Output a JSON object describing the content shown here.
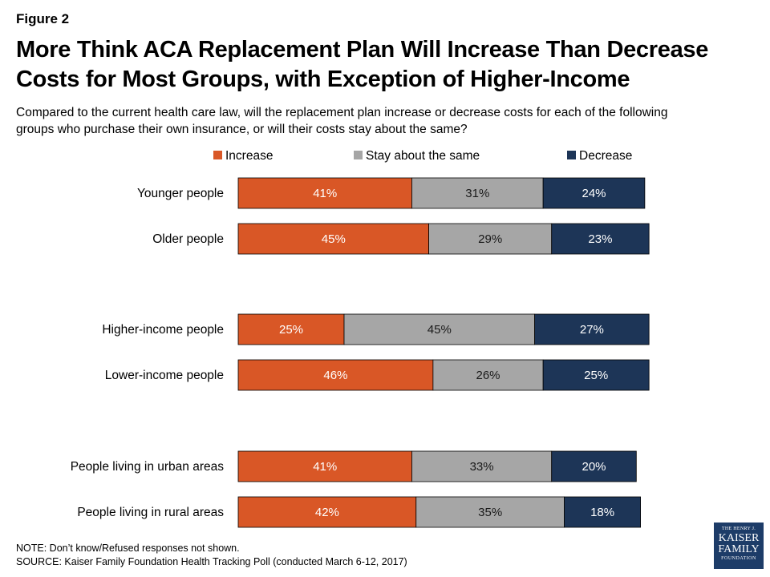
{
  "figure_label": "Figure 2",
  "title_line1": "More Think ACA Replacement Plan Will Increase Than Decrease",
  "title_line2": "Costs for Most Groups, with Exception of Higher-Income",
  "subtitle_line1": "Compared to the current health care law, will the replacement plan increase or decrease costs for each of the following",
  "subtitle_line2": "groups who purchase their own insurance, or will their costs stay about the same?",
  "note": "NOTE: Don’t know/Refused responses not shown.",
  "source": "SOURCE: Kaiser Family Foundation Health Tracking Poll (conducted March 6-12, 2017)",
  "logo": {
    "line1": "THE HENRY J.",
    "line2": "KAISER",
    "line3": "FAMILY",
    "line4": "FOUNDATION"
  },
  "colors": {
    "increase": "#d95726",
    "same": "#a6a6a6",
    "decrease": "#1d3557",
    "bar_text_light": "#ffffff",
    "bar_text_dark": "#1a1a1a"
  },
  "chart_data": {
    "type": "bar",
    "orientation": "horizontal",
    "stacked": true,
    "legend_placement": "top",
    "categories": [
      "Younger people",
      "Older people",
      "Higher-income people",
      "Lower-income people",
      "People living in urban areas",
      "People living in rural areas"
    ],
    "groups": [
      [
        0,
        1
      ],
      [
        2,
        3
      ],
      [
        4,
        5
      ]
    ],
    "series": [
      {
        "name": "Increase",
        "values": [
          41,
          45,
          25,
          46,
          41,
          42
        ]
      },
      {
        "name": "Stay about the same",
        "values": [
          31,
          29,
          45,
          26,
          33,
          35
        ]
      },
      {
        "name": "Decrease",
        "values": [
          24,
          23,
          27,
          25,
          20,
          18
        ]
      }
    ],
    "value_suffix": "%",
    "xlim": [
      0,
      100
    ],
    "grid": false
  }
}
